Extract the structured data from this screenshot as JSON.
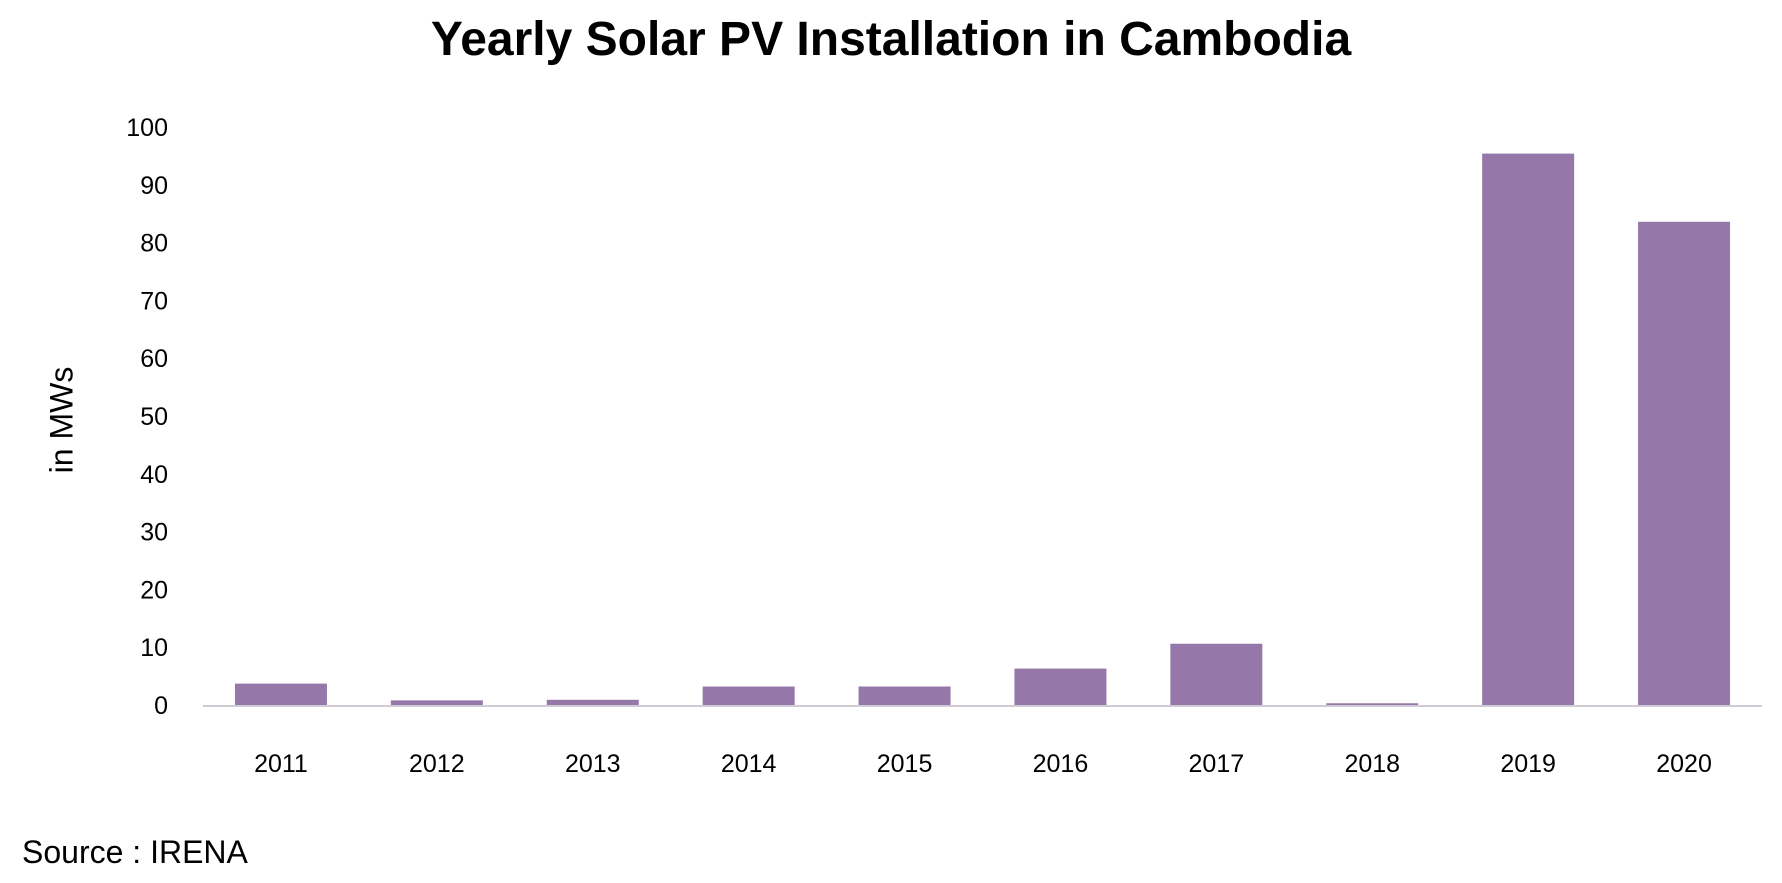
{
  "chart_data": {
    "type": "bar",
    "title": "Yearly Solar PV Installation in Cambodia",
    "ylabel": "in MWs",
    "xlabel": "",
    "categories": [
      "2011",
      "2012",
      "2013",
      "2014",
      "2015",
      "2016",
      "2017",
      "2018",
      "2019",
      "2020"
    ],
    "values": [
      3.7,
      0.8,
      0.9,
      3.2,
      3.2,
      6.3,
      10.6,
      0.3,
      95.4,
      83.6
    ],
    "ylim": [
      0,
      100
    ],
    "yticks": [
      0,
      10,
      20,
      30,
      40,
      50,
      60,
      70,
      80,
      90,
      100
    ],
    "grid": false,
    "bar_color": "#9578A9",
    "axis_color": "#D0CCD6"
  },
  "source": "Source : IRENA"
}
